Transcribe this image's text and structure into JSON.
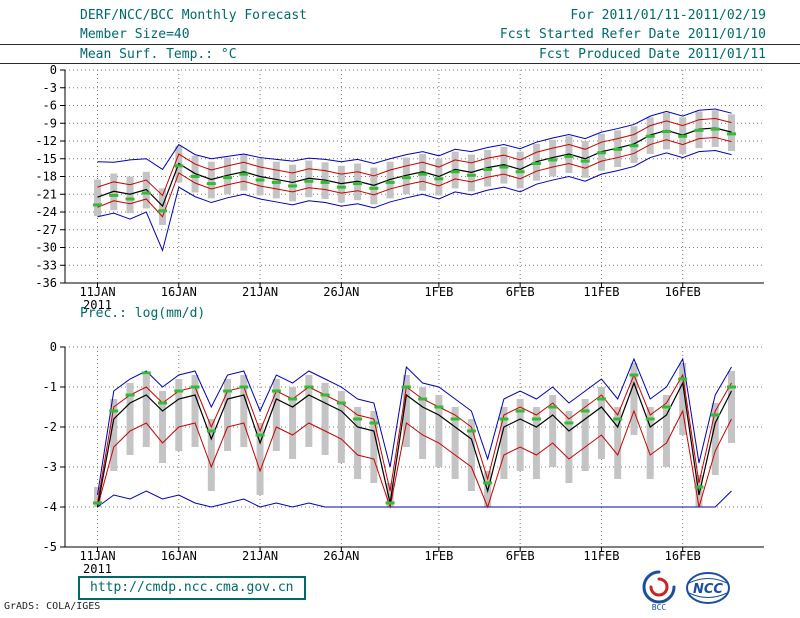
{
  "header": {
    "title": "DERF/NCC/BCC Monthly Forecast",
    "for_range": "For 2011/01/11-2011/02/19",
    "member_size": "Member Size=40",
    "fcst_started": "Fcst Started Refer Date 2011/01/10",
    "fcst_produced": "Fcst Produced Date 2011/01/11"
  },
  "footer": {
    "url": "http://cmdp.ncc.cma.gov.cn",
    "credit": "GrADS: COLA/IGES",
    "logos": [
      "BCC",
      "NCC"
    ]
  },
  "colors": {
    "header_text": "#006a6a",
    "ensemble_extreme": "#0000bb",
    "ensemble_spread": "#cc0000",
    "ensemble_mean": "#000000",
    "observation": "#33bb33",
    "member_bars": "#c4c4c4"
  },
  "chart_data": [
    {
      "type": "line",
      "title": "Mean Surf. Temp.: °C",
      "ylabel": "",
      "xlabel": "",
      "ylim": [
        -36,
        0
      ],
      "yticks": [
        0,
        -3,
        -6,
        -9,
        -12,
        -15,
        -18,
        -21,
        -24,
        -27,
        -30,
        -33,
        -36
      ],
      "x_tick_labels": [
        "11JAN",
        "16JAN",
        "21JAN",
        "26JAN",
        "1FEB",
        "6FEB",
        "11FEB",
        "16FEB"
      ],
      "x_tick_idx": [
        0,
        5,
        10,
        15,
        21,
        26,
        31,
        36
      ],
      "x_year_label": "2011",
      "n_days": 40,
      "grid": true,
      "series": [
        {
          "name": "member-bars",
          "type": "bar",
          "color": "#c4c4c4",
          "top": [
            -18.5,
            -17.5,
            -18.0,
            -17.2,
            -20.0,
            -12.8,
            -14.5,
            -15.5,
            -14.8,
            -14.2,
            -15.0,
            -15.5,
            -16.0,
            -15.3,
            -15.6,
            -16.2,
            -15.8,
            -16.5,
            -15.5,
            -14.8,
            -14.2,
            -15.0,
            -13.8,
            -14.3,
            -13.5,
            -13.0,
            -13.8,
            -12.5,
            -11.8,
            -11.2,
            -12.0,
            -10.8,
            -10.2,
            -9.5,
            -8.0,
            -7.2,
            -8.0,
            -7.0,
            -6.8,
            -7.5
          ],
          "bottom": [
            -24.7,
            -23.7,
            -24.2,
            -23.4,
            -26.2,
            -19.0,
            -20.7,
            -21.7,
            -21.0,
            -20.4,
            -21.2,
            -21.7,
            -22.2,
            -21.5,
            -21.8,
            -22.4,
            -22.0,
            -22.7,
            -21.7,
            -21.0,
            -20.4,
            -21.2,
            -20.0,
            -20.5,
            -19.7,
            -19.2,
            -20.0,
            -18.7,
            -18.0,
            -17.4,
            -18.2,
            -17.0,
            -16.4,
            -15.7,
            -14.2,
            -13.4,
            -14.2,
            -13.2,
            -13.0,
            -13.7
          ]
        },
        {
          "name": "ensemble-max",
          "type": "line",
          "color": "#0000bb",
          "values": [
            -15.5,
            -15.6,
            -15.2,
            -15.0,
            -16.8,
            -12.6,
            -14.3,
            -15.0,
            -14.6,
            -14.2,
            -14.8,
            -15.1,
            -15.4,
            -14.9,
            -15.1,
            -15.5,
            -15.1,
            -15.8,
            -15.0,
            -14.3,
            -13.8,
            -14.5,
            -13.4,
            -13.8,
            -13.1,
            -12.6,
            -13.3,
            -12.2,
            -11.5,
            -10.9,
            -11.6,
            -10.5,
            -9.9,
            -9.2,
            -7.8,
            -7.0,
            -7.8,
            -6.8,
            -6.6,
            -7.3
          ]
        },
        {
          "name": "ensemble-min",
          "type": "line",
          "color": "#0000bb",
          "values": [
            -24.8,
            -24.2,
            -25.2,
            -24.0,
            -30.5,
            -19.8,
            -21.4,
            -22.4,
            -21.6,
            -21.0,
            -21.8,
            -22.3,
            -22.8,
            -22.1,
            -22.4,
            -23.0,
            -22.6,
            -23.3,
            -22.3,
            -21.6,
            -21.0,
            -21.8,
            -20.6,
            -21.1,
            -20.3,
            -19.8,
            -20.6,
            -19.3,
            -18.6,
            -18.0,
            -18.8,
            -17.6,
            -17.0,
            -16.3,
            -14.8,
            -14.0,
            -14.8,
            -13.8,
            -13.6,
            -14.3
          ]
        },
        {
          "name": "spread-upper",
          "type": "line",
          "color": "#cc0000",
          "values": [
            -19.8,
            -18.9,
            -19.4,
            -18.6,
            -21.2,
            -14.2,
            -15.9,
            -16.9,
            -16.2,
            -15.6,
            -16.4,
            -16.9,
            -17.4,
            -16.7,
            -17.0,
            -17.6,
            -17.2,
            -17.9,
            -16.9,
            -16.2,
            -15.6,
            -16.4,
            -15.2,
            -15.7,
            -14.9,
            -14.4,
            -15.2,
            -13.9,
            -13.2,
            -12.6,
            -13.4,
            -12.2,
            -11.6,
            -10.9,
            -9.4,
            -8.6,
            -9.4,
            -8.4,
            -8.2,
            -8.9
          ]
        },
        {
          "name": "spread-lower",
          "type": "line",
          "color": "#cc0000",
          "values": [
            -23.2,
            -22.1,
            -22.6,
            -21.8,
            -24.8,
            -17.4,
            -19.1,
            -20.1,
            -19.4,
            -18.8,
            -19.6,
            -20.1,
            -20.6,
            -19.9,
            -20.2,
            -20.8,
            -20.4,
            -21.1,
            -20.1,
            -19.4,
            -18.8,
            -19.6,
            -18.4,
            -18.9,
            -18.1,
            -17.6,
            -18.4,
            -17.1,
            -16.4,
            -15.8,
            -16.6,
            -15.4,
            -14.8,
            -14.1,
            -12.6,
            -11.8,
            -12.6,
            -11.6,
            -11.4,
            -12.1
          ]
        },
        {
          "name": "ensemble-mean",
          "type": "line",
          "color": "#000000",
          "width": 1.2,
          "values": [
            -21.5,
            -20.5,
            -21.0,
            -20.2,
            -23.0,
            -15.8,
            -17.5,
            -18.5,
            -17.8,
            -17.2,
            -18.0,
            -18.5,
            -19.0,
            -18.3,
            -18.6,
            -19.2,
            -18.8,
            -19.5,
            -18.5,
            -17.8,
            -17.2,
            -18.0,
            -16.8,
            -17.3,
            -16.5,
            -16.0,
            -16.8,
            -15.5,
            -14.8,
            -14.2,
            -15.0,
            -13.8,
            -13.2,
            -12.5,
            -11.0,
            -10.2,
            -11.0,
            -10.0,
            -9.8,
            -10.5
          ]
        },
        {
          "name": "observation",
          "type": "dash",
          "color": "#33bb33",
          "values": [
            -22.8,
            -21.2,
            -21.8,
            -20.8,
            -23.8,
            -16.2,
            -18.0,
            -19.2,
            -18.2,
            -17.6,
            -18.6,
            -19.0,
            -19.6,
            -18.8,
            -19.0,
            -19.8,
            -19.2,
            -20.0,
            -19.0,
            -18.2,
            -17.6,
            -18.4,
            -17.2,
            -17.8,
            -16.8,
            -16.4,
            -17.2,
            -15.8,
            -15.2,
            -14.6,
            -15.4,
            -14.0,
            -13.4,
            -12.8,
            -11.2,
            -10.4,
            -11.2,
            -10.2,
            -10.0,
            -10.8
          ]
        }
      ]
    },
    {
      "type": "line",
      "title": "Prec.: log(mm/d)",
      "ylabel": "",
      "xlabel": "",
      "ylim": [
        -5,
        0
      ],
      "yticks": [
        0,
        -1,
        -2,
        -3,
        -4,
        -5
      ],
      "x_tick_labels": [
        "11JAN",
        "16JAN",
        "21JAN",
        "26JAN",
        "1FEB",
        "6FEB",
        "11FEB",
        "16FEB"
      ],
      "x_tick_idx": [
        0,
        5,
        10,
        15,
        21,
        26,
        31,
        36
      ],
      "x_year_label": "2011",
      "n_days": 40,
      "grid": true,
      "series": [
        {
          "name": "member-bars",
          "type": "bar",
          "color": "#c4c4c4",
          "top": [
            -3.5,
            -1.3,
            -0.9,
            -0.7,
            -1.1,
            -0.8,
            -0.7,
            -1.8,
            -0.8,
            -0.7,
            -1.9,
            -0.8,
            -1.0,
            -0.7,
            -0.9,
            -1.1,
            -1.5,
            -1.6,
            -3.4,
            -0.7,
            -1.0,
            -1.2,
            -1.5,
            -1.8,
            -3.1,
            -1.5,
            -1.3,
            -1.5,
            -1.2,
            -1.6,
            -1.3,
            -1.0,
            -1.5,
            -0.4,
            -1.5,
            -1.2,
            -0.4,
            -3.2,
            -1.4,
            -0.6
          ],
          "bottom": [
            -4.0,
            -3.1,
            -2.7,
            -2.5,
            -2.9,
            -2.6,
            -2.5,
            -3.6,
            -2.6,
            -2.5,
            -3.7,
            -2.6,
            -2.8,
            -2.5,
            -2.7,
            -2.9,
            -3.3,
            -3.4,
            -4.0,
            -2.5,
            -2.8,
            -3.0,
            -3.3,
            -3.6,
            -4.0,
            -3.3,
            -3.1,
            -3.3,
            -3.0,
            -3.4,
            -3.1,
            -2.8,
            -3.3,
            -2.2,
            -3.3,
            -3.0,
            -2.2,
            -4.0,
            -3.2,
            -2.4
          ]
        },
        {
          "name": "ensemble-max",
          "type": "line",
          "color": "#0000bb",
          "values": [
            -3.7,
            -1.1,
            -0.8,
            -0.6,
            -1.0,
            -0.7,
            -0.6,
            -1.5,
            -0.7,
            -0.6,
            -1.6,
            -0.7,
            -0.9,
            -0.6,
            -0.8,
            -1.0,
            -1.3,
            -1.4,
            -3.0,
            -0.5,
            -0.9,
            -1.0,
            -1.3,
            -1.6,
            -2.8,
            -1.3,
            -1.1,
            -1.3,
            -1.0,
            -1.4,
            -1.1,
            -0.8,
            -1.3,
            -0.3,
            -1.3,
            -1.0,
            -0.3,
            -2.9,
            -1.2,
            -0.5
          ]
        },
        {
          "name": "ensemble-min",
          "type": "line",
          "color": "#0000bb",
          "values": [
            -4.0,
            -3.7,
            -3.8,
            -3.6,
            -3.8,
            -3.7,
            -3.9,
            -4.0,
            -3.9,
            -3.8,
            -4.0,
            -3.9,
            -4.0,
            -3.9,
            -4.0,
            -4.0,
            -4.0,
            -4.0,
            -4.0,
            -4.0,
            -4.0,
            -4.0,
            -4.0,
            -4.0,
            -4.0,
            -4.0,
            -4.0,
            -4.0,
            -4.0,
            -4.0,
            -4.0,
            -4.0,
            -4.0,
            -4.0,
            -4.0,
            -4.0,
            -4.0,
            -4.0,
            -4.0,
            -3.6
          ]
        },
        {
          "name": "spread-upper",
          "type": "line",
          "color": "#cc0000",
          "values": [
            -3.9,
            -1.5,
            -1.2,
            -1.0,
            -1.4,
            -1.1,
            -1.0,
            -2.0,
            -1.1,
            -1.0,
            -2.1,
            -1.1,
            -1.3,
            -1.0,
            -1.2,
            -1.4,
            -1.7,
            -1.8,
            -3.6,
            -1.0,
            -1.3,
            -1.5,
            -1.7,
            -2.0,
            -3.3,
            -1.7,
            -1.5,
            -1.7,
            -1.4,
            -1.8,
            -1.5,
            -1.2,
            -1.7,
            -0.7,
            -1.7,
            -1.4,
            -0.7,
            -3.4,
            -1.6,
            -0.9
          ]
        },
        {
          "name": "spread-lower",
          "type": "line",
          "color": "#cc0000",
          "values": [
            -4.0,
            -2.5,
            -2.1,
            -1.9,
            -2.4,
            -2.0,
            -1.9,
            -3.0,
            -2.0,
            -1.9,
            -3.1,
            -2.0,
            -2.2,
            -1.9,
            -2.1,
            -2.3,
            -2.7,
            -2.8,
            -4.0,
            -1.9,
            -2.2,
            -2.4,
            -2.7,
            -3.0,
            -4.0,
            -2.7,
            -2.5,
            -2.7,
            -2.4,
            -2.8,
            -2.5,
            -2.2,
            -2.7,
            -1.6,
            -2.7,
            -2.4,
            -1.6,
            -4.0,
            -2.6,
            -1.8
          ]
        },
        {
          "name": "ensemble-mean",
          "type": "line",
          "color": "#000000",
          "width": 1.2,
          "values": [
            -4.0,
            -1.8,
            -1.4,
            -1.2,
            -1.6,
            -1.3,
            -1.2,
            -2.3,
            -1.3,
            -1.2,
            -2.4,
            -1.3,
            -1.5,
            -1.2,
            -1.4,
            -1.6,
            -2.0,
            -2.1,
            -3.9,
            -1.2,
            -1.5,
            -1.7,
            -2.0,
            -2.3,
            -3.6,
            -2.0,
            -1.8,
            -2.0,
            -1.7,
            -2.1,
            -1.8,
            -1.5,
            -2.0,
            -0.9,
            -2.0,
            -1.7,
            -0.9,
            -3.7,
            -1.9,
            -1.1
          ]
        },
        {
          "name": "observation",
          "type": "dash",
          "color": "#33bb33",
          "values": [
            -3.9,
            -1.6,
            -1.2,
            -0.65,
            -1.4,
            -1.1,
            -1.0,
            -2.1,
            -1.1,
            -1.0,
            -2.2,
            -1.1,
            -1.3,
            -1.0,
            -1.2,
            -1.4,
            -1.8,
            -1.9,
            -3.9,
            -1.0,
            -1.3,
            -1.5,
            -1.8,
            -2.1,
            -3.4,
            -1.8,
            -1.6,
            -1.8,
            -1.5,
            -1.9,
            -1.6,
            -1.3,
            -1.8,
            -0.7,
            -1.8,
            -1.5,
            -0.8,
            -3.5,
            -1.7,
            -1.0
          ]
        }
      ]
    }
  ]
}
